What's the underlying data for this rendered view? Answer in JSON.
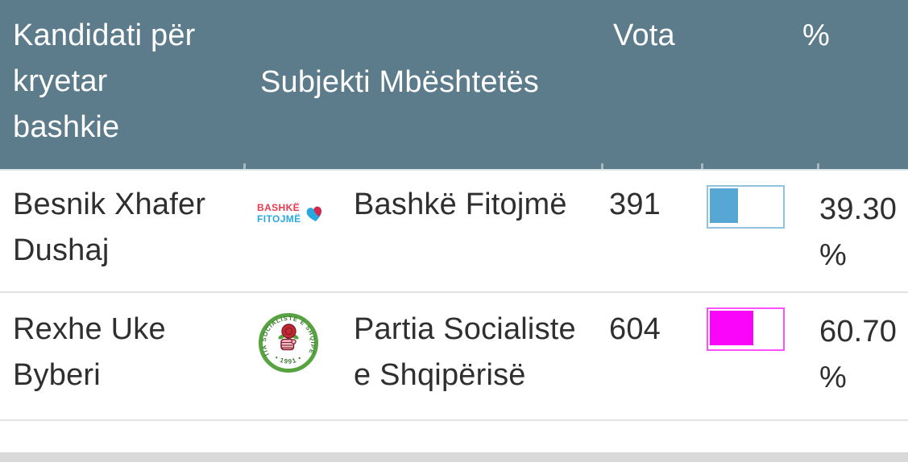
{
  "table": {
    "header": {
      "candidate": "Kandidati për kryetar bashkie",
      "subject": "Subjekti Mbështetës",
      "votes": "Vota",
      "percent": "%"
    },
    "rows": [
      {
        "candidate": "Besnik Xhafer Dushaj",
        "subject": "Bashkë Fitojmë",
        "votes": "391",
        "percent_label": "39.30 %",
        "bar": {
          "percent": 39.3,
          "fill": "#57a7d4",
          "border": "#90c3df"
        },
        "logo": {
          "name": "bashke-fitojme-logo",
          "line1": "BASHKË",
          "line2": "FITOJMË",
          "text_color_line1": "#e8394d",
          "text_color_line2": "#29a8e0",
          "heart_left_color": "#29a8e0",
          "heart_right_color": "#d4294b"
        }
      },
      {
        "candidate": "Rexhe Uke Byberi",
        "subject": "Partia Socialiste e Shqipërisë",
        "votes": "604",
        "percent_label": "60.70 %",
        "bar": {
          "percent": 60.7,
          "fill": "#fa04fa",
          "border": "#fc50fc"
        },
        "logo": {
          "name": "partia-socialiste-logo",
          "ring_text": "PARTIA SOCIALISTE E SHQIPËRISË",
          "bottom_text": "• 1991 •",
          "ring_color": "#57a33f",
          "rose_color": "#c62832"
        }
      }
    ],
    "colors": {
      "header_bg": "#5d7c8b",
      "header_text": "#ffffff",
      "body_text": "#2f2f2f",
      "row_divider": "#e2e2e2",
      "bottom_bar": "#d9d9d9"
    }
  },
  "chart_data": {
    "type": "table",
    "columns": [
      "Kandidati për kryetar bashkie",
      "Subjekti Mbështetës",
      "Vota",
      "%"
    ],
    "rows": [
      [
        "Besnik Xhafer Dushaj",
        "Bashkë Fitojmë",
        391,
        39.3
      ],
      [
        "Rexhe Uke Byberi",
        "Partia Socialiste e Shqipërisë",
        604,
        60.7
      ]
    ]
  }
}
